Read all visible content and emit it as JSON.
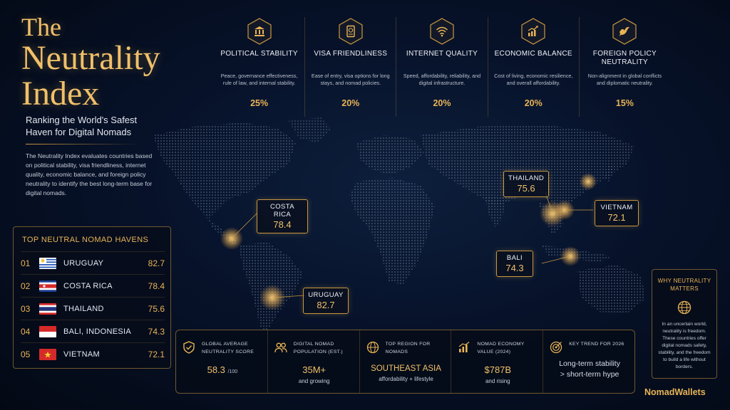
{
  "title": {
    "line1": "The",
    "line2": "Neutrality",
    "line3": "Index"
  },
  "subtitle": "Ranking the World's Safest Haven for Digital Nomads",
  "intro": "The Neutrality Index evaluates countries based on political stability, visa friendliness, internet quality, economic balance, and foreign policy neutrality to identify the best long-term base for digital nomads.",
  "criteria": [
    {
      "icon": "government-building-icon",
      "title": "POLITICAL STABILITY",
      "desc": "Peace, governance effectiveness, rule of law, and internal stability.",
      "weight": "25%"
    },
    {
      "icon": "passport-icon",
      "title": "VISA FRIENDLINESS",
      "desc": "Ease of entry, visa options for long stays, and nomad policies.",
      "weight": "20%"
    },
    {
      "icon": "wifi-icon",
      "title": "INTERNET QUALITY",
      "desc": "Speed, affordability, reliability, and digital infrastructure.",
      "weight": "20%"
    },
    {
      "icon": "growth-chart-icon",
      "title": "ECONOMIC BALANCE",
      "desc": "Cost of living, economic resilience, and overall affordability.",
      "weight": "20%"
    },
    {
      "icon": "dove-icon",
      "title": "FOREIGN POLICY NEUTRALITY",
      "desc": "Non-alignment in global conflicts and diplomatic neutrality.",
      "weight": "15%"
    }
  ],
  "callouts": {
    "costa_rica": {
      "name": "COSTA RICA",
      "value": "78.4"
    },
    "uruguay": {
      "name": "URUGUAY",
      "value": "82.7"
    },
    "thailand": {
      "name": "THAILAND",
      "value": "75.6"
    },
    "vietnam": {
      "name": "VIETNAM",
      "value": "72.1"
    },
    "bali": {
      "name": "BALI",
      "value": "74.3"
    }
  },
  "havens": {
    "title": "TOP NEUTRAL NOMAD HAVENS",
    "items": [
      {
        "rank": "01",
        "flag": "uruguay-flag",
        "name": "URUGUAY",
        "score": "82.7"
      },
      {
        "rank": "02",
        "flag": "costa-rica-flag",
        "name": "COSTA RICA",
        "score": "78.4"
      },
      {
        "rank": "03",
        "flag": "thailand-flag",
        "name": "THAILAND",
        "score": "75.6"
      },
      {
        "rank": "04",
        "flag": "indonesia-flag",
        "name": "BALI, INDONESIA",
        "score": "74.3"
      },
      {
        "rank": "05",
        "flag": "vietnam-flag",
        "name": "VIETNAM",
        "score": "72.1"
      }
    ]
  },
  "stats": [
    {
      "icon": "shield-check-icon",
      "label": "GLOBAL AVERAGE NEUTRALITY SCORE",
      "value": "58.3",
      "value_suffix": "/100",
      "sub": ""
    },
    {
      "icon": "people-icon",
      "label": "DIGITAL NOMAD POPULATION (EST.)",
      "value": "35M+",
      "sub": "and growing"
    },
    {
      "icon": "globe-icon",
      "label": "TOP REGION FOR NOMADS",
      "value": "SOUTHEAST ASIA",
      "sub": "affordability + lifestyle"
    },
    {
      "icon": "bar-chart-icon",
      "label": "NOMAD ECONOMY VALUE (2024)",
      "value": "$787B",
      "sub": "and rising"
    },
    {
      "icon": "target-icon",
      "label": "KEY TREND FOR 2026",
      "value_line1": "Long-term stability",
      "value_line2": "> short-term hype"
    }
  ],
  "why": {
    "title": "WHY NEUTRALITY MATTERS",
    "icon": "globe-icon",
    "text": "In an uncertain world, neutrality is freedom. These countries offer digital nomads safety, stability, and the freedom to build a life without borders."
  },
  "brand": "NomadWallets",
  "colors": {
    "accent": "#e9b455",
    "background": "#07122a",
    "border": "#c9973f"
  }
}
